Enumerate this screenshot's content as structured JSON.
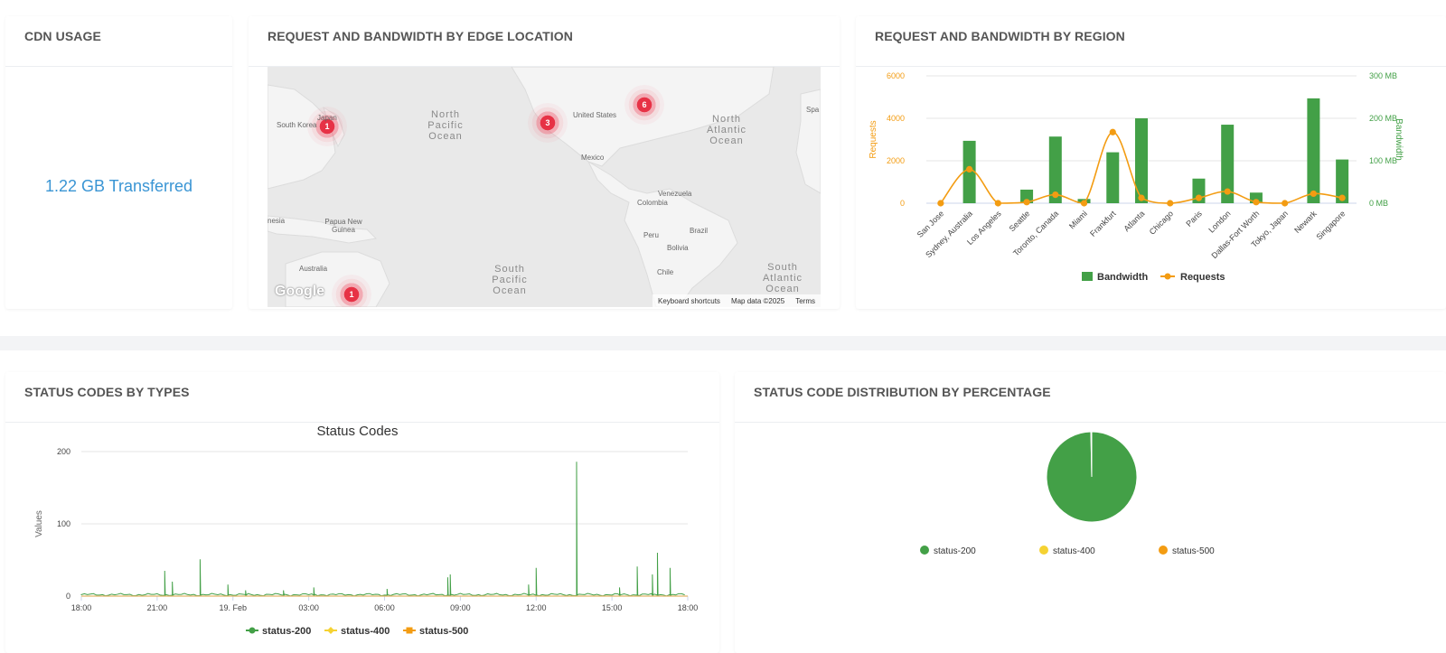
{
  "cdn_card": {
    "title": "CDN USAGE",
    "value": "1.22 GB Transferred"
  },
  "edge_card": {
    "title": "REQUEST AND BANDWIDTH BY EDGE LOCATION",
    "map": {
      "clusters": [
        {
          "label": "1"
        },
        {
          "label": "3"
        },
        {
          "label": "6"
        },
        {
          "label": "1"
        }
      ],
      "places": [
        "South Korea",
        "Japan",
        "United States",
        "Mexico",
        "Venezuela",
        "Colombia",
        "Peru",
        "Brazil",
        "Bolivia",
        "Chile",
        "Papua New Guinea",
        "Australia",
        "nesia",
        "Spa"
      ],
      "oceans": [
        "North Pacific Ocean",
        "North Atlantic Ocean",
        "South Pacific Ocean",
        "South Atlantic Ocean"
      ],
      "google_logo": "Google",
      "footer": [
        "Keyboard shortcuts",
        "Map data ©2025",
        "Terms"
      ]
    }
  },
  "region_card": {
    "title": "REQUEST AND BANDWIDTH BY REGION",
    "chart_data": {
      "type": "bar",
      "categories": [
        "San Jose",
        "Sydney, Australia",
        "Los Angeles",
        "Seattle",
        "Toronto, Canada",
        "Miami",
        "Frankfurt",
        "Atlanta",
        "Chicago",
        "Paris",
        "London",
        "Dallas-Fort Worth",
        "Tokyo, Japan",
        "Newark",
        "Singapore"
      ],
      "series": [
        {
          "name": "Bandwidth",
          "type": "bar",
          "axis": "right",
          "color": "#43a047",
          "unit": "MB",
          "values": [
            0,
            147,
            0,
            32,
            157,
            10,
            120,
            200,
            0,
            58,
            185,
            25,
            0,
            247,
            103
          ]
        },
        {
          "name": "Requests",
          "type": "line",
          "axis": "left",
          "color": "#f39c12",
          "values": [
            0,
            1600,
            0,
            50,
            400,
            0,
            3350,
            250,
            0,
            250,
            550,
            50,
            0,
            450,
            250
          ]
        }
      ],
      "ylabel": "Requests",
      "y2label": "Bandwidth",
      "ylim": [
        0,
        6000
      ],
      "y2lim": [
        0,
        300
      ],
      "yticks": [
        "0",
        "2000",
        "4000",
        "6000"
      ],
      "y2ticks": [
        "0 MB",
        "100 MB",
        "200 MB",
        "300 MB"
      ],
      "grid": true,
      "legend": "bottom"
    }
  },
  "status_card": {
    "title": "STATUS CODES BY TYPES",
    "chart_data": {
      "type": "line",
      "title": "Status Codes",
      "ylabel": "Values",
      "ylim": [
        0,
        200
      ],
      "yticks": [
        "0",
        "100",
        "200"
      ],
      "xticks": [
        "18:00",
        "21:00",
        "19. Feb",
        "03:00",
        "06:00",
        "09:00",
        "12:00",
        "15:00",
        "18:00"
      ],
      "series": [
        {
          "name": "status-200",
          "color": "#43a047",
          "spikes": [
            [
              3.3,
              35
            ],
            [
              3.6,
              20
            ],
            [
              4.7,
              51
            ],
            [
              5.8,
              16
            ],
            [
              6.5,
              8
            ],
            [
              8.0,
              8
            ],
            [
              9.2,
              12
            ],
            [
              12.1,
              10
            ],
            [
              14.5,
              26
            ],
            [
              14.6,
              30
            ],
            [
              17.7,
              16
            ],
            [
              18.0,
              39
            ],
            [
              19.6,
              186
            ],
            [
              21.3,
              12
            ],
            [
              22.0,
              41
            ],
            [
              22.6,
              30
            ],
            [
              22.8,
              60
            ],
            [
              23.3,
              39
            ]
          ]
        },
        {
          "name": "status-400",
          "color": "#f5d232",
          "spikes": []
        },
        {
          "name": "status-500",
          "color": "#f39c12",
          "spikes": []
        }
      ],
      "grid": true,
      "legend": "bottom"
    }
  },
  "dist_card": {
    "title": "STATUS CODE DISTRIBUTION BY PERCENTAGE",
    "chart_data": {
      "type": "pie",
      "slices": [
        {
          "name": "status-200",
          "value": 99.7,
          "color": "#43a047"
        },
        {
          "name": "status-400",
          "value": 0.15,
          "color": "#f5d232"
        },
        {
          "name": "status-500",
          "value": 0.15,
          "color": "#f39c12"
        }
      ],
      "legend": "bottom"
    }
  }
}
